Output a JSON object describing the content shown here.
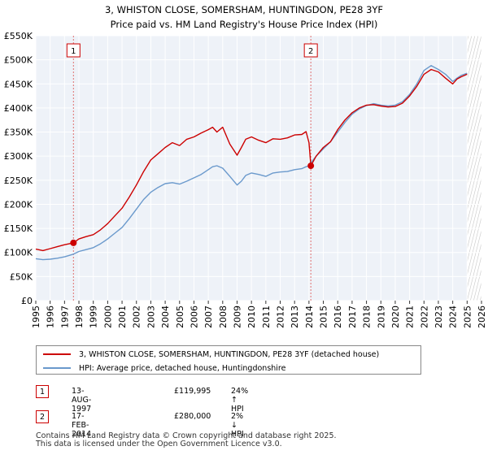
{
  "chart_data": {
    "type": "line",
    "title": "3, WHISTON CLOSE, SOMERSHAM, HUNTINGDON, PE28 3YF",
    "subtitle": "Price paid vs. HM Land Registry's House Price Index (HPI)",
    "xlabel": "",
    "ylabel": "",
    "xlim": [
      1995,
      2026
    ],
    "ylim": [
      0,
      550000
    ],
    "x_ticks": [
      1995,
      1996,
      1997,
      1998,
      1999,
      2000,
      2001,
      2002,
      2003,
      2004,
      2005,
      2006,
      2007,
      2008,
      2009,
      2010,
      2011,
      2012,
      2013,
      2014,
      2015,
      2016,
      2017,
      2018,
      2019,
      2020,
      2021,
      2022,
      2023,
      2024,
      2025,
      2026
    ],
    "x_tick_labels": [
      "1995",
      "1996",
      "1997",
      "1998",
      "1999",
      "2000",
      "2001",
      "2002",
      "2003",
      "2004",
      "2005",
      "2006",
      "2007",
      "2008",
      "2009",
      "2010",
      "2011",
      "2012",
      "2013",
      "2014",
      "2015",
      "2016",
      "2017",
      "2018",
      "2019",
      "2020",
      "2021",
      "2022",
      "2023",
      "2024",
      "2025",
      "2026"
    ],
    "y_ticks": [
      0,
      50000,
      100000,
      150000,
      200000,
      250000,
      300000,
      350000,
      400000,
      450000,
      500000,
      550000
    ],
    "y_tick_labels": [
      "£0",
      "£50K",
      "£100K",
      "£150K",
      "£200K",
      "£250K",
      "£300K",
      "£350K",
      "£400K",
      "£450K",
      "£500K",
      "£550K"
    ],
    "grid": true,
    "series": [
      {
        "name": "3, WHISTON CLOSE, SOMERSHAM, HUNTINGDON, PE28 3YF (detached house)",
        "color": "#cc0000",
        "x": [
          1995.0,
          1995.5,
          1996.0,
          1996.5,
          1997.0,
          1997.62,
          1998.0,
          1998.5,
          1999.0,
          1999.5,
          2000.0,
          2000.5,
          2001.0,
          2001.5,
          2002.0,
          2002.5,
          2003.0,
          2003.5,
          2004.0,
          2004.5,
          2005.0,
          2005.5,
          2006.0,
          2006.5,
          2007.0,
          2007.3,
          2007.6,
          2008.0,
          2008.5,
          2009.0,
          2009.3,
          2009.6,
          2010.0,
          2010.5,
          2011.0,
          2011.5,
          2012.0,
          2012.5,
          2013.0,
          2013.5,
          2013.8,
          2014.0,
          2014.13,
          2014.5,
          2015.0,
          2015.5,
          2016.0,
          2016.5,
          2017.0,
          2017.5,
          2018.0,
          2018.5,
          2019.0,
          2019.5,
          2020.0,
          2020.5,
          2021.0,
          2021.5,
          2022.0,
          2022.5,
          2023.0,
          2023.5,
          2024.0,
          2024.3,
          2024.6,
          2025.0
        ],
        "values": [
          107000,
          104000,
          108000,
          112000,
          116000,
          119995,
          128000,
          133000,
          137000,
          147000,
          160000,
          176000,
          192000,
          215000,
          240000,
          268000,
          292000,
          305000,
          318000,
          328000,
          322000,
          335000,
          340000,
          348000,
          355000,
          360000,
          350000,
          360000,
          325000,
          302000,
          318000,
          335000,
          340000,
          333000,
          328000,
          336000,
          335000,
          338000,
          344000,
          345000,
          351000,
          328000,
          280000,
          300000,
          318000,
          330000,
          355000,
          375000,
          390000,
          400000,
          406000,
          407000,
          404000,
          402000,
          403000,
          410000,
          425000,
          445000,
          470000,
          480000,
          475000,
          462000,
          450000,
          460000,
          465000,
          470000
        ]
      },
      {
        "name": "HPI: Average price, detached house, Huntingdonshire",
        "color": "#6a99cc",
        "x": [
          1995.0,
          1995.5,
          1996.0,
          1996.5,
          1997.0,
          1997.62,
          1998.0,
          1998.5,
          1999.0,
          1999.5,
          2000.0,
          2000.5,
          2001.0,
          2001.5,
          2002.0,
          2002.5,
          2003.0,
          2003.5,
          2004.0,
          2004.5,
          2005.0,
          2005.5,
          2006.0,
          2006.5,
          2007.0,
          2007.3,
          2007.6,
          2008.0,
          2008.5,
          2009.0,
          2009.3,
          2009.6,
          2010.0,
          2010.5,
          2011.0,
          2011.5,
          2012.0,
          2012.5,
          2013.0,
          2013.5,
          2013.8,
          2014.0,
          2014.13,
          2014.5,
          2015.0,
          2015.5,
          2016.0,
          2016.5,
          2017.0,
          2017.5,
          2018.0,
          2018.5,
          2019.0,
          2019.5,
          2020.0,
          2020.5,
          2021.0,
          2021.5,
          2022.0,
          2022.5,
          2023.0,
          2023.5,
          2024.0,
          2024.3,
          2024.6,
          2025.0
        ],
        "values": [
          87000,
          85000,
          86000,
          88000,
          91000,
          96500,
          102000,
          106000,
          110000,
          118000,
          128000,
          140000,
          152000,
          170000,
          190000,
          210000,
          225000,
          235000,
          243000,
          245000,
          242000,
          248000,
          255000,
          262000,
          272000,
          278000,
          280000,
          275000,
          258000,
          240000,
          248000,
          260000,
          265000,
          262000,
          258000,
          265000,
          267000,
          268000,
          272000,
          274000,
          278000,
          280000,
          286000,
          300000,
          315000,
          330000,
          350000,
          370000,
          387000,
          398000,
          405000,
          409000,
          406000,
          404000,
          406000,
          413000,
          428000,
          450000,
          478000,
          488000,
          480000,
          470000,
          455000,
          462000,
          468000,
          472000
        ]
      }
    ],
    "annotations": [
      {
        "label": "1",
        "x": 1997.62,
        "value": 119995,
        "date": "13-AUG-1997",
        "price": "£119,995",
        "hpi": "24% ↑ HPI"
      },
      {
        "label": "2",
        "x": 2014.13,
        "value": 280000,
        "date": "17-FEB-2014",
        "price": "£280,000",
        "hpi": "2% ↓ HPI"
      }
    ],
    "forecast_start": 2025.0
  },
  "footer": {
    "line1": "Contains HM Land Registry data © Crown copyright and database right 2025.",
    "line2": "This data is licensed under the Open Government Licence v3.0."
  }
}
